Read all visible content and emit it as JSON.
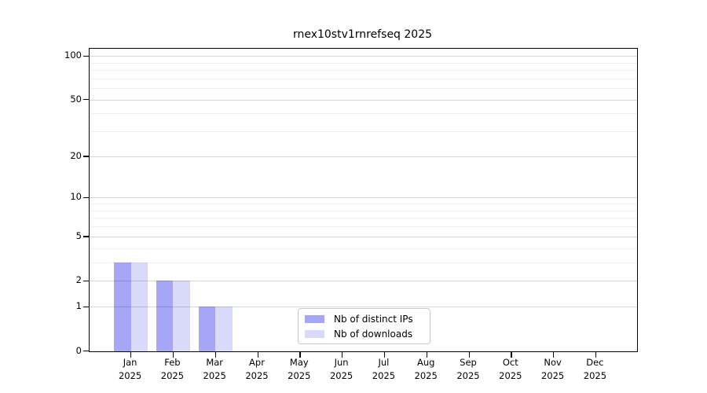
{
  "chart_data": {
    "type": "bar",
    "title": "rnex10stv1rnrefseq 2025",
    "categories": [
      "Jan",
      "Feb",
      "Mar",
      "Apr",
      "May",
      "Jun",
      "Jul",
      "Aug",
      "Sep",
      "Oct",
      "Nov",
      "Dec"
    ],
    "category_year_line": "2025",
    "series": [
      {
        "name": "Nb of distinct IPs",
        "color": "#a6a6f6",
        "values": [
          3,
          2,
          1,
          0,
          0,
          0,
          0,
          0,
          0,
          0,
          0,
          0
        ]
      },
      {
        "name": "Nb of downloads",
        "color": "#d9d9f9",
        "values": [
          3,
          2,
          1,
          0,
          0,
          0,
          0,
          0,
          0,
          0,
          0,
          0
        ]
      }
    ],
    "yscale": "log1p",
    "ylim": [
      0,
      111.9
    ],
    "yticks_major": [
      0,
      1,
      2,
      5,
      10,
      20,
      50,
      100
    ],
    "yticks_minor": [
      3,
      4,
      6,
      7,
      8,
      9,
      30,
      40,
      60,
      70,
      80,
      90
    ],
    "grid": true,
    "legend_position": "lower center",
    "colors": {
      "axis": "#000000",
      "grid_major": "#d6d6d6",
      "grid_minor": "#f0f0f0",
      "background": "#ffffff",
      "legend_border": "#c9c9c9"
    }
  }
}
